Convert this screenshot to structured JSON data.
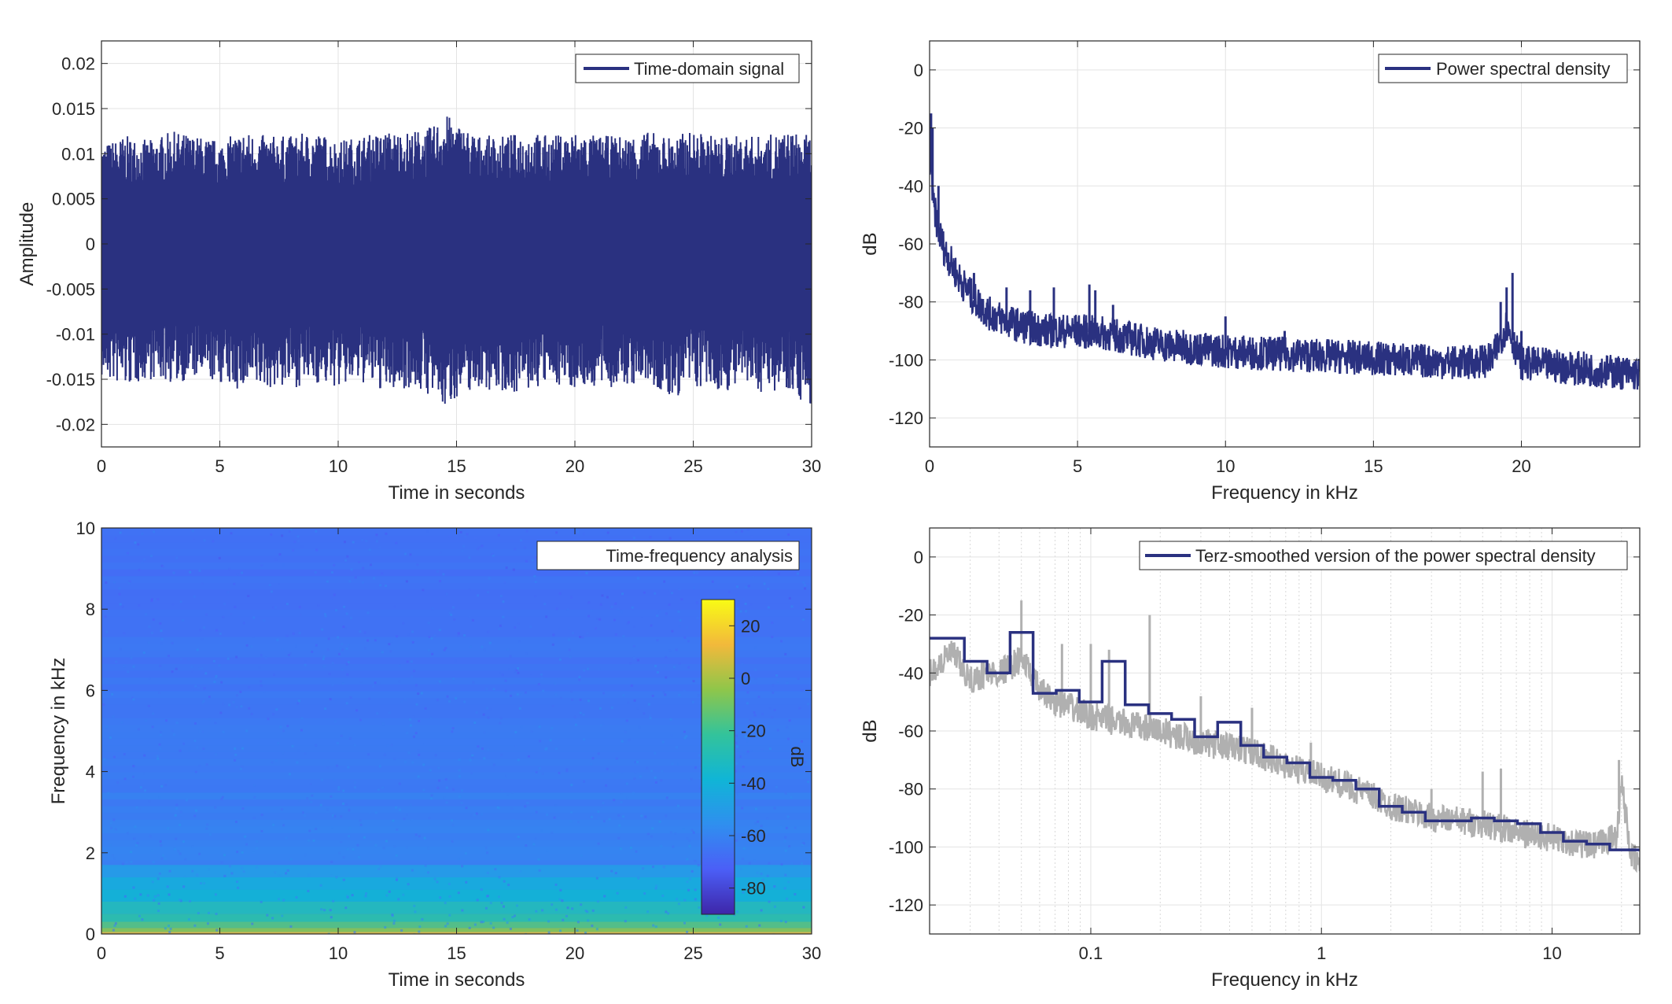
{
  "chart_data": [
    {
      "id": "p1",
      "type": "line",
      "xlabel": "Time in seconds",
      "ylabel": "Amplitude",
      "xlim": [
        0,
        30
      ],
      "ylim": [
        -0.0225,
        0.0225
      ],
      "xticks": [
        0,
        5,
        10,
        15,
        20,
        25,
        30
      ],
      "xtick_labels": [
        "0",
        "5",
        "10",
        "15",
        "20",
        "25",
        "30"
      ],
      "yticks": [
        0.02,
        0.015,
        0.01,
        0.005,
        0,
        -0.005,
        -0.01,
        -0.015,
        -0.02
      ],
      "ytick_labels": [
        "0.02",
        "0.015",
        "0.01",
        "0.005",
        "0",
        "-0.005",
        "-0.01",
        "-0.015",
        "-0.02"
      ],
      "grid": true,
      "legend_position": "top-right",
      "series": [
        {
          "name": "Time-domain signal",
          "color": "#2a3180",
          "envelope": {
            "x": [
              0,
              1,
              2,
              3,
              4,
              5,
              6,
              7,
              8,
              9,
              10,
              11,
              12,
              13,
              14,
              14.5,
              15,
              16,
              17,
              18,
              19,
              20,
              21,
              22,
              23,
              24,
              25,
              26,
              27,
              28,
              29,
              30
            ],
            "upper": [
              0.011,
              0.012,
              0.0115,
              0.0125,
              0.012,
              0.0115,
              0.0125,
              0.012,
              0.012,
              0.0125,
              0.0115,
              0.012,
              0.0125,
              0.0125,
              0.013,
              0.0145,
              0.0135,
              0.012,
              0.012,
              0.0125,
              0.012,
              0.0125,
              0.012,
              0.012,
              0.0125,
              0.012,
              0.0125,
              0.012,
              0.012,
              0.012,
              0.0125,
              0.012
            ],
            "lower": [
              -0.015,
              -0.016,
              -0.015,
              -0.0155,
              -0.015,
              -0.0155,
              -0.0165,
              -0.016,
              -0.016,
              -0.0155,
              -0.016,
              -0.0155,
              -0.0165,
              -0.016,
              -0.017,
              -0.0185,
              -0.017,
              -0.016,
              -0.0165,
              -0.0165,
              -0.0155,
              -0.016,
              -0.016,
              -0.016,
              -0.0155,
              -0.0175,
              -0.016,
              -0.0165,
              -0.016,
              -0.0165,
              -0.016,
              -0.0185
            ]
          }
        }
      ]
    },
    {
      "id": "p2",
      "type": "line",
      "xlabel": "Frequency in kHz",
      "ylabel": "dB",
      "xlim": [
        0,
        24
      ],
      "ylim": [
        -130,
        10
      ],
      "xticks": [
        0,
        5,
        10,
        15,
        20
      ],
      "xtick_labels": [
        "0",
        "5",
        "10",
        "15",
        "20"
      ],
      "yticks": [
        0,
        -20,
        -40,
        -60,
        -80,
        -100,
        -120
      ],
      "ytick_labels": [
        "0",
        "-20",
        "-40",
        "-60",
        "-80",
        "-100",
        "-120"
      ],
      "grid": true,
      "legend_position": "top-right",
      "series": [
        {
          "name": "Power spectral density",
          "color": "#2a3180",
          "x": [
            0,
            0.05,
            0.1,
            0.2,
            0.3,
            0.5,
            0.7,
            1.0,
            1.5,
            2.0,
            3.0,
            4.0,
            5.0,
            6.0,
            7.0,
            8.0,
            9.0,
            10.0,
            12.0,
            14.0,
            16.0,
            18.0,
            19.0,
            19.5,
            20.0,
            21.0,
            22.0,
            23.0,
            24.0
          ],
          "y": [
            -40,
            -25,
            -45,
            -50,
            -55,
            -62,
            -66,
            -72,
            -79,
            -84,
            -88,
            -90,
            -90,
            -91,
            -93,
            -95,
            -96,
            -97,
            -98,
            -99,
            -100,
            -101,
            -100,
            -88,
            -101,
            -102,
            -103,
            -104,
            -105
          ]
        }
      ],
      "peaks": {
        "x": [
          0.05,
          0.1,
          0.3,
          1.5,
          2.6,
          3.4,
          4.2,
          5.4,
          5.6,
          6.2,
          10.0,
          12.0,
          19.3,
          19.5,
          19.7,
          20.0
        ],
        "y": [
          -15,
          -20,
          -40,
          -70,
          -75,
          -76,
          -75,
          -74,
          -76,
          -81,
          -85,
          -90,
          -80,
          -75,
          -70,
          -90
        ]
      }
    },
    {
      "id": "p3",
      "type": "heatmap",
      "xlabel": "Time in seconds",
      "ylabel": "Frequency in kHz",
      "xlim": [
        0,
        30
      ],
      "ylim": [
        0,
        10
      ],
      "xticks": [
        0,
        5,
        10,
        15,
        20,
        25,
        30
      ],
      "xtick_labels": [
        "0",
        "5",
        "10",
        "15",
        "20",
        "25",
        "30"
      ],
      "yticks": [
        0,
        2,
        4,
        6,
        8,
        10
      ],
      "ytick_labels": [
        "0",
        "2",
        "4",
        "6",
        "8",
        "10"
      ],
      "legend_position": "top-right",
      "legend_label": "Time-frequency analysis",
      "colorbar": {
        "label": "dB",
        "clim": [
          -90,
          30
        ],
        "ticks": [
          20,
          0,
          -20,
          -40,
          -60,
          -80
        ],
        "tick_labels": [
          "20",
          "0",
          "-20",
          "-40",
          "-60",
          "-80"
        ],
        "colormap": [
          "#3e26a8",
          "#4b5ff7",
          "#2f8fef",
          "#10b5d6",
          "#33c39b",
          "#8fc64a",
          "#f2b93b",
          "#f9fb15"
        ]
      },
      "bands_khz": [
        0.05,
        0.15,
        0.3,
        0.5,
        0.8,
        1.1,
        1.4,
        1.7
      ],
      "bands_db": [
        10,
        -5,
        -15,
        -25,
        -30,
        -38,
        -42,
        -50
      ],
      "background_db": [
        -58,
        -62,
        -65,
        -67
      ]
    },
    {
      "id": "p4",
      "type": "line",
      "xlabel": "Frequency in kHz",
      "ylabel": "dB",
      "xscale": "log",
      "xlim": [
        0.02,
        24
      ],
      "ylim": [
        -130,
        10
      ],
      "xticks": [
        0.1,
        1,
        10
      ],
      "xtick_labels": [
        "0.1",
        "1",
        "10"
      ],
      "yticks": [
        0,
        -20,
        -40,
        -60,
        -80,
        -100,
        -120
      ],
      "ytick_labels": [
        "0",
        "-20",
        "-40",
        "-60",
        "-80",
        "-100",
        "-120"
      ],
      "grid": true,
      "legend_position": "top-right",
      "series": [
        {
          "color": "#b0b0b0",
          "x": [
            0.02,
            0.025,
            0.03,
            0.035,
            0.04,
            0.05,
            0.06,
            0.07,
            0.1,
            0.15,
            0.2,
            0.3,
            0.5,
            0.7,
            1.0,
            1.5,
            2.0,
            3.0,
            5.0,
            7.0,
            10.0,
            15.0,
            19.0,
            20.0,
            22.0,
            24.0
          ],
          "y": [
            -40,
            -33,
            -43,
            -40,
            -40,
            -35,
            -46,
            -50,
            -55,
            -58,
            -60,
            -64,
            -67,
            -72,
            -76,
            -81,
            -86,
            -90,
            -92,
            -95,
            -97,
            -100,
            -96,
            -78,
            -103,
            -106
          ]
        },
        {
          "name": "Terz-smoothed version of the power spectral density",
          "color": "#2a3180",
          "step_edges": [
            0.02,
            0.0283,
            0.0355,
            0.0447,
            0.0562,
            0.0708,
            0.0891,
            0.112,
            0.141,
            0.178,
            0.224,
            0.282,
            0.355,
            0.447,
            0.562,
            0.708,
            0.891,
            1.12,
            1.41,
            1.78,
            2.24,
            2.82,
            3.55,
            4.47,
            5.62,
            7.08,
            8.91,
            11.2,
            14.1,
            17.8,
            24.0
          ],
          "step_values": [
            -28,
            -36,
            -40,
            -26,
            -47,
            -46,
            -50,
            -36,
            -51,
            -54,
            -56,
            -62,
            -57,
            -65,
            -69,
            -71,
            -76,
            -77,
            -80,
            -86,
            -88,
            -91,
            -91,
            -90,
            -91,
            -92,
            -95,
            -98,
            -99,
            -101
          ]
        }
      ],
      "spikes": {
        "x": [
          0.05,
          0.075,
          0.1,
          0.12,
          0.18,
          0.3,
          0.5,
          0.9,
          3.0,
          5.0,
          6.0,
          19.5
        ],
        "y": [
          -15,
          -30,
          -30,
          -32,
          -20,
          -48,
          -52,
          -64,
          -80,
          -74,
          -73,
          -70
        ]
      }
    }
  ]
}
